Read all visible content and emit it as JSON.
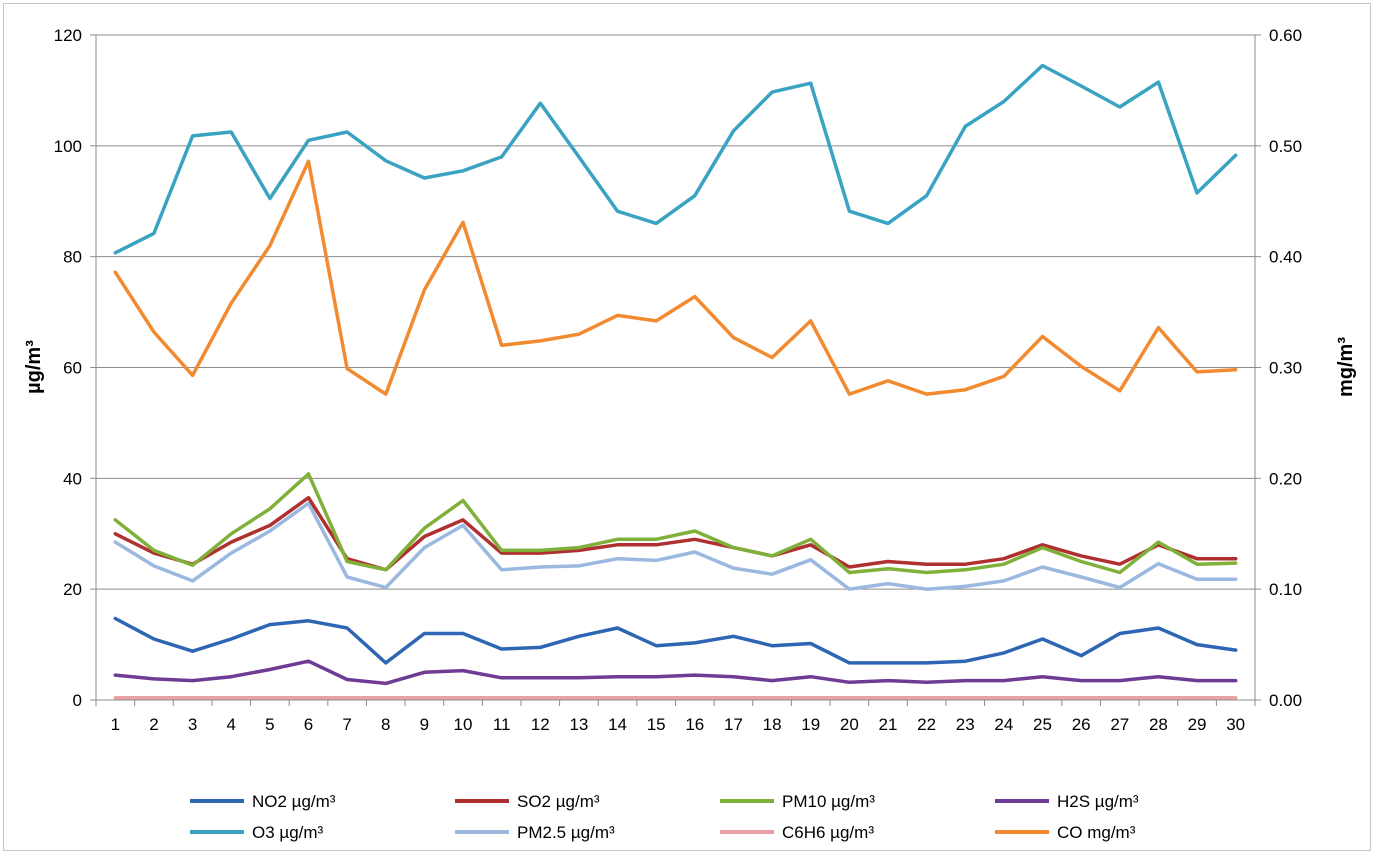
{
  "chart_data": {
    "type": "line",
    "title": "",
    "x": [
      1,
      2,
      3,
      4,
      5,
      6,
      7,
      8,
      9,
      10,
      11,
      12,
      13,
      14,
      15,
      16,
      17,
      18,
      19,
      20,
      21,
      22,
      23,
      24,
      25,
      26,
      27,
      28,
      29,
      30
    ],
    "ylabel_left": "µg/m³",
    "ylabel_right": "mg/m³",
    "ylim_left": [
      0,
      120
    ],
    "ylim_right": [
      0,
      0.6
    ],
    "yticks_left": [
      "0",
      "20",
      "40",
      "60",
      "80",
      "100",
      "120"
    ],
    "yticks_right": [
      "0.00",
      "0.10",
      "0.20",
      "0.30",
      "0.40",
      "0.50",
      "0.60"
    ],
    "grid": "horizontal",
    "legend_position": "bottom",
    "series": [
      {
        "name": "NO2 µg/m³",
        "axis": "left",
        "color": "#2e66b3",
        "values": [
          14.7,
          11,
          8.8,
          11,
          13.6,
          14.3,
          13,
          6.7,
          12,
          12,
          9.2,
          9.5,
          11.5,
          13,
          9.8,
          10.3,
          11.5,
          9.8,
          10.2,
          6.7,
          6.7,
          6.7,
          7,
          8.5,
          11,
          8,
          12,
          13,
          10,
          9
        ]
      },
      {
        "name": "SO2 µg/m³",
        "axis": "left",
        "color": "#b03030",
        "values": [
          30,
          26.5,
          24.5,
          28.5,
          31.5,
          36.5,
          25.5,
          23.5,
          29.5,
          32.5,
          26.5,
          26.5,
          27,
          28,
          28,
          29,
          27.5,
          26,
          28,
          24,
          25,
          24.5,
          24.5,
          25.5,
          28,
          26,
          24.5,
          28,
          25.5,
          25.5
        ]
      },
      {
        "name": "PM10 µg/m³",
        "axis": "left",
        "color": "#7fb03a",
        "values": [
          32.5,
          27,
          24.3,
          30,
          34.5,
          40.8,
          25,
          23.5,
          31,
          36,
          27,
          27,
          27.5,
          29,
          29,
          30.5,
          27.5,
          26,
          29,
          23,
          23.7,
          23,
          23.5,
          24.5,
          27.5,
          25,
          23,
          28.5,
          24.5,
          24.7
        ]
      },
      {
        "name": "H2S µg/m³",
        "axis": "left",
        "color": "#6f3c95",
        "values": [
          4.5,
          3.8,
          3.5,
          4.2,
          5.5,
          7,
          3.7,
          3,
          5,
          5.3,
          4,
          4,
          4,
          4.2,
          4.2,
          4.5,
          4.2,
          3.5,
          4.2,
          3.2,
          3.5,
          3.2,
          3.5,
          3.5,
          4.2,
          3.5,
          3.5,
          4.2,
          3.5,
          3.5
        ]
      },
      {
        "name": "O3 µg/m³",
        "axis": "left",
        "color": "#3aa3c2",
        "values": [
          80.7,
          84.2,
          101.8,
          102.5,
          90.5,
          101,
          102.5,
          97.3,
          94.2,
          95.5,
          98,
          107.7,
          98,
          88.2,
          86,
          91,
          102.7,
          109.7,
          111.3,
          88.2,
          86,
          91,
          103.5,
          108,
          114.5,
          110.8,
          107,
          111.5,
          91.5,
          98.3
        ]
      },
      {
        "name": "PM2.5 µg/m³",
        "axis": "left",
        "color": "#9ab8e0",
        "values": [
          28.5,
          24.2,
          21.5,
          26.5,
          30.5,
          35.5,
          22.2,
          20.3,
          27.5,
          31.5,
          23.5,
          24,
          24.2,
          25.5,
          25.2,
          26.7,
          23.8,
          22.7,
          25.3,
          20,
          21,
          20,
          20.5,
          21.5,
          24,
          22.2,
          20.3,
          24.6,
          21.8,
          21.8
        ]
      },
      {
        "name": "C6H6 µg/m³",
        "axis": "left",
        "color": "#e8a2a6",
        "values": [
          0.4,
          0.4,
          0.4,
          0.4,
          0.4,
          0.4,
          0.4,
          0.4,
          0.4,
          0.4,
          0.4,
          0.4,
          0.4,
          0.4,
          0.4,
          0.4,
          0.4,
          0.4,
          0.4,
          0.4,
          0.4,
          0.4,
          0.4,
          0.4,
          0.4,
          0.4,
          0.4,
          0.4,
          0.4,
          0.4
        ]
      },
      {
        "name": "CO mg/m³",
        "axis": "right",
        "color": "#f28a30",
        "values": [
          0.386,
          0.332,
          0.293,
          0.358,
          0.41,
          0.486,
          0.299,
          0.276,
          0.37,
          0.431,
          0.32,
          0.324,
          0.33,
          0.347,
          0.342,
          0.364,
          0.327,
          0.309,
          0.342,
          0.276,
          0.288,
          0.276,
          0.28,
          0.292,
          0.328,
          0.301,
          0.279,
          0.336,
          0.296,
          0.298
        ]
      }
    ]
  }
}
